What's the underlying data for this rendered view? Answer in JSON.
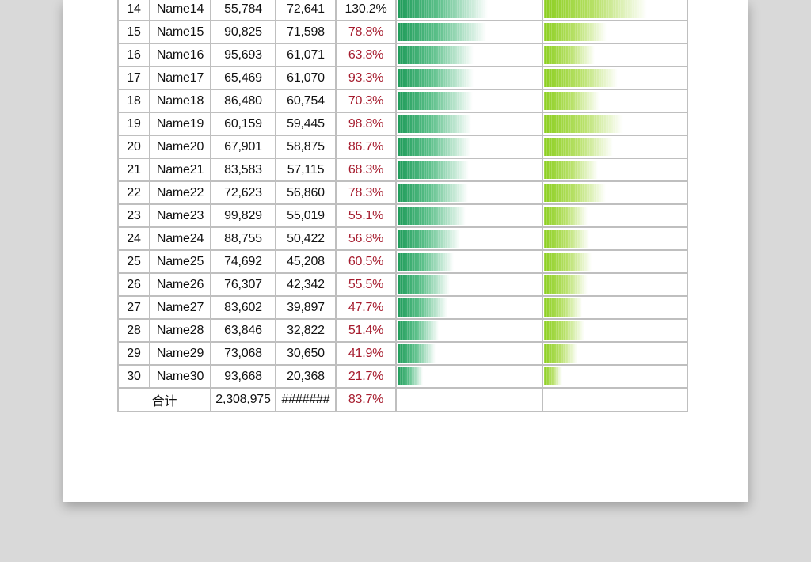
{
  "colors": {
    "green_bar": "#1e9b59",
    "lime_bar": "#8ccf20",
    "pct_text": "#a61c2e"
  },
  "rows": [
    {
      "no": "14",
      "name": "Name14",
      "a": "55,784",
      "b": "72,641",
      "pct": "130.2%",
      "a_val": 55784,
      "b_val": 72641,
      "ratio": 130.2
    },
    {
      "no": "15",
      "name": "Name15",
      "a": "90,825",
      "b": "71,598",
      "pct": "78.8%",
      "a_val": 90825,
      "b_val": 71598,
      "ratio": 78.8
    },
    {
      "no": "16",
      "name": "Name16",
      "a": "95,693",
      "b": "61,071",
      "pct": "63.8%",
      "a_val": 95693,
      "b_val": 61071,
      "ratio": 63.8
    },
    {
      "no": "17",
      "name": "Name17",
      "a": "65,469",
      "b": "61,070",
      "pct": "93.3%",
      "a_val": 65469,
      "b_val": 61070,
      "ratio": 93.3
    },
    {
      "no": "18",
      "name": "Name18",
      "a": "86,480",
      "b": "60,754",
      "pct": "70.3%",
      "a_val": 86480,
      "b_val": 60754,
      "ratio": 70.3
    },
    {
      "no": "19",
      "name": "Name19",
      "a": "60,159",
      "b": "59,445",
      "pct": "98.8%",
      "a_val": 60159,
      "b_val": 59445,
      "ratio": 98.8
    },
    {
      "no": "20",
      "name": "Name20",
      "a": "67,901",
      "b": "58,875",
      "pct": "86.7%",
      "a_val": 67901,
      "b_val": 58875,
      "ratio": 86.7
    },
    {
      "no": "21",
      "name": "Name21",
      "a": "83,583",
      "b": "57,115",
      "pct": "68.3%",
      "a_val": 83583,
      "b_val": 57115,
      "ratio": 68.3
    },
    {
      "no": "22",
      "name": "Name22",
      "a": "72,623",
      "b": "56,860",
      "pct": "78.3%",
      "a_val": 72623,
      "b_val": 56860,
      "ratio": 78.3
    },
    {
      "no": "23",
      "name": "Name23",
      "a": "99,829",
      "b": "55,019",
      "pct": "55.1%",
      "a_val": 99829,
      "b_val": 55019,
      "ratio": 55.1
    },
    {
      "no": "24",
      "name": "Name24",
      "a": "88,755",
      "b": "50,422",
      "pct": "56.8%",
      "a_val": 88755,
      "b_val": 50422,
      "ratio": 56.8
    },
    {
      "no": "25",
      "name": "Name25",
      "a": "74,692",
      "b": "45,208",
      "pct": "60.5%",
      "a_val": 74692,
      "b_val": 45208,
      "ratio": 60.5
    },
    {
      "no": "26",
      "name": "Name26",
      "a": "76,307",
      "b": "42,342",
      "pct": "55.5%",
      "a_val": 76307,
      "b_val": 42342,
      "ratio": 55.5
    },
    {
      "no": "27",
      "name": "Name27",
      "a": "83,602",
      "b": "39,897",
      "pct": "47.7%",
      "a_val": 83602,
      "b_val": 39897,
      "ratio": 47.7
    },
    {
      "no": "28",
      "name": "Name28",
      "a": "63,846",
      "b": "32,822",
      "pct": "51.4%",
      "a_val": 63846,
      "b_val": 32822,
      "ratio": 51.4
    },
    {
      "no": "29",
      "name": "Name29",
      "a": "73,068",
      "b": "30,650",
      "pct": "41.9%",
      "a_val": 73068,
      "b_val": 30650,
      "ratio": 41.9
    },
    {
      "no": "30",
      "name": "Name30",
      "a": "93,668",
      "b": "20,368",
      "pct": "21.7%",
      "a_val": 93668,
      "b_val": 20368,
      "ratio": 21.7
    }
  ],
  "total": {
    "label": "合计",
    "a": "2,308,975",
    "b": "#######",
    "pct": "83.7%"
  },
  "bar_scale": {
    "green_max": 72641,
    "lime_max_ratio": 130.2
  }
}
